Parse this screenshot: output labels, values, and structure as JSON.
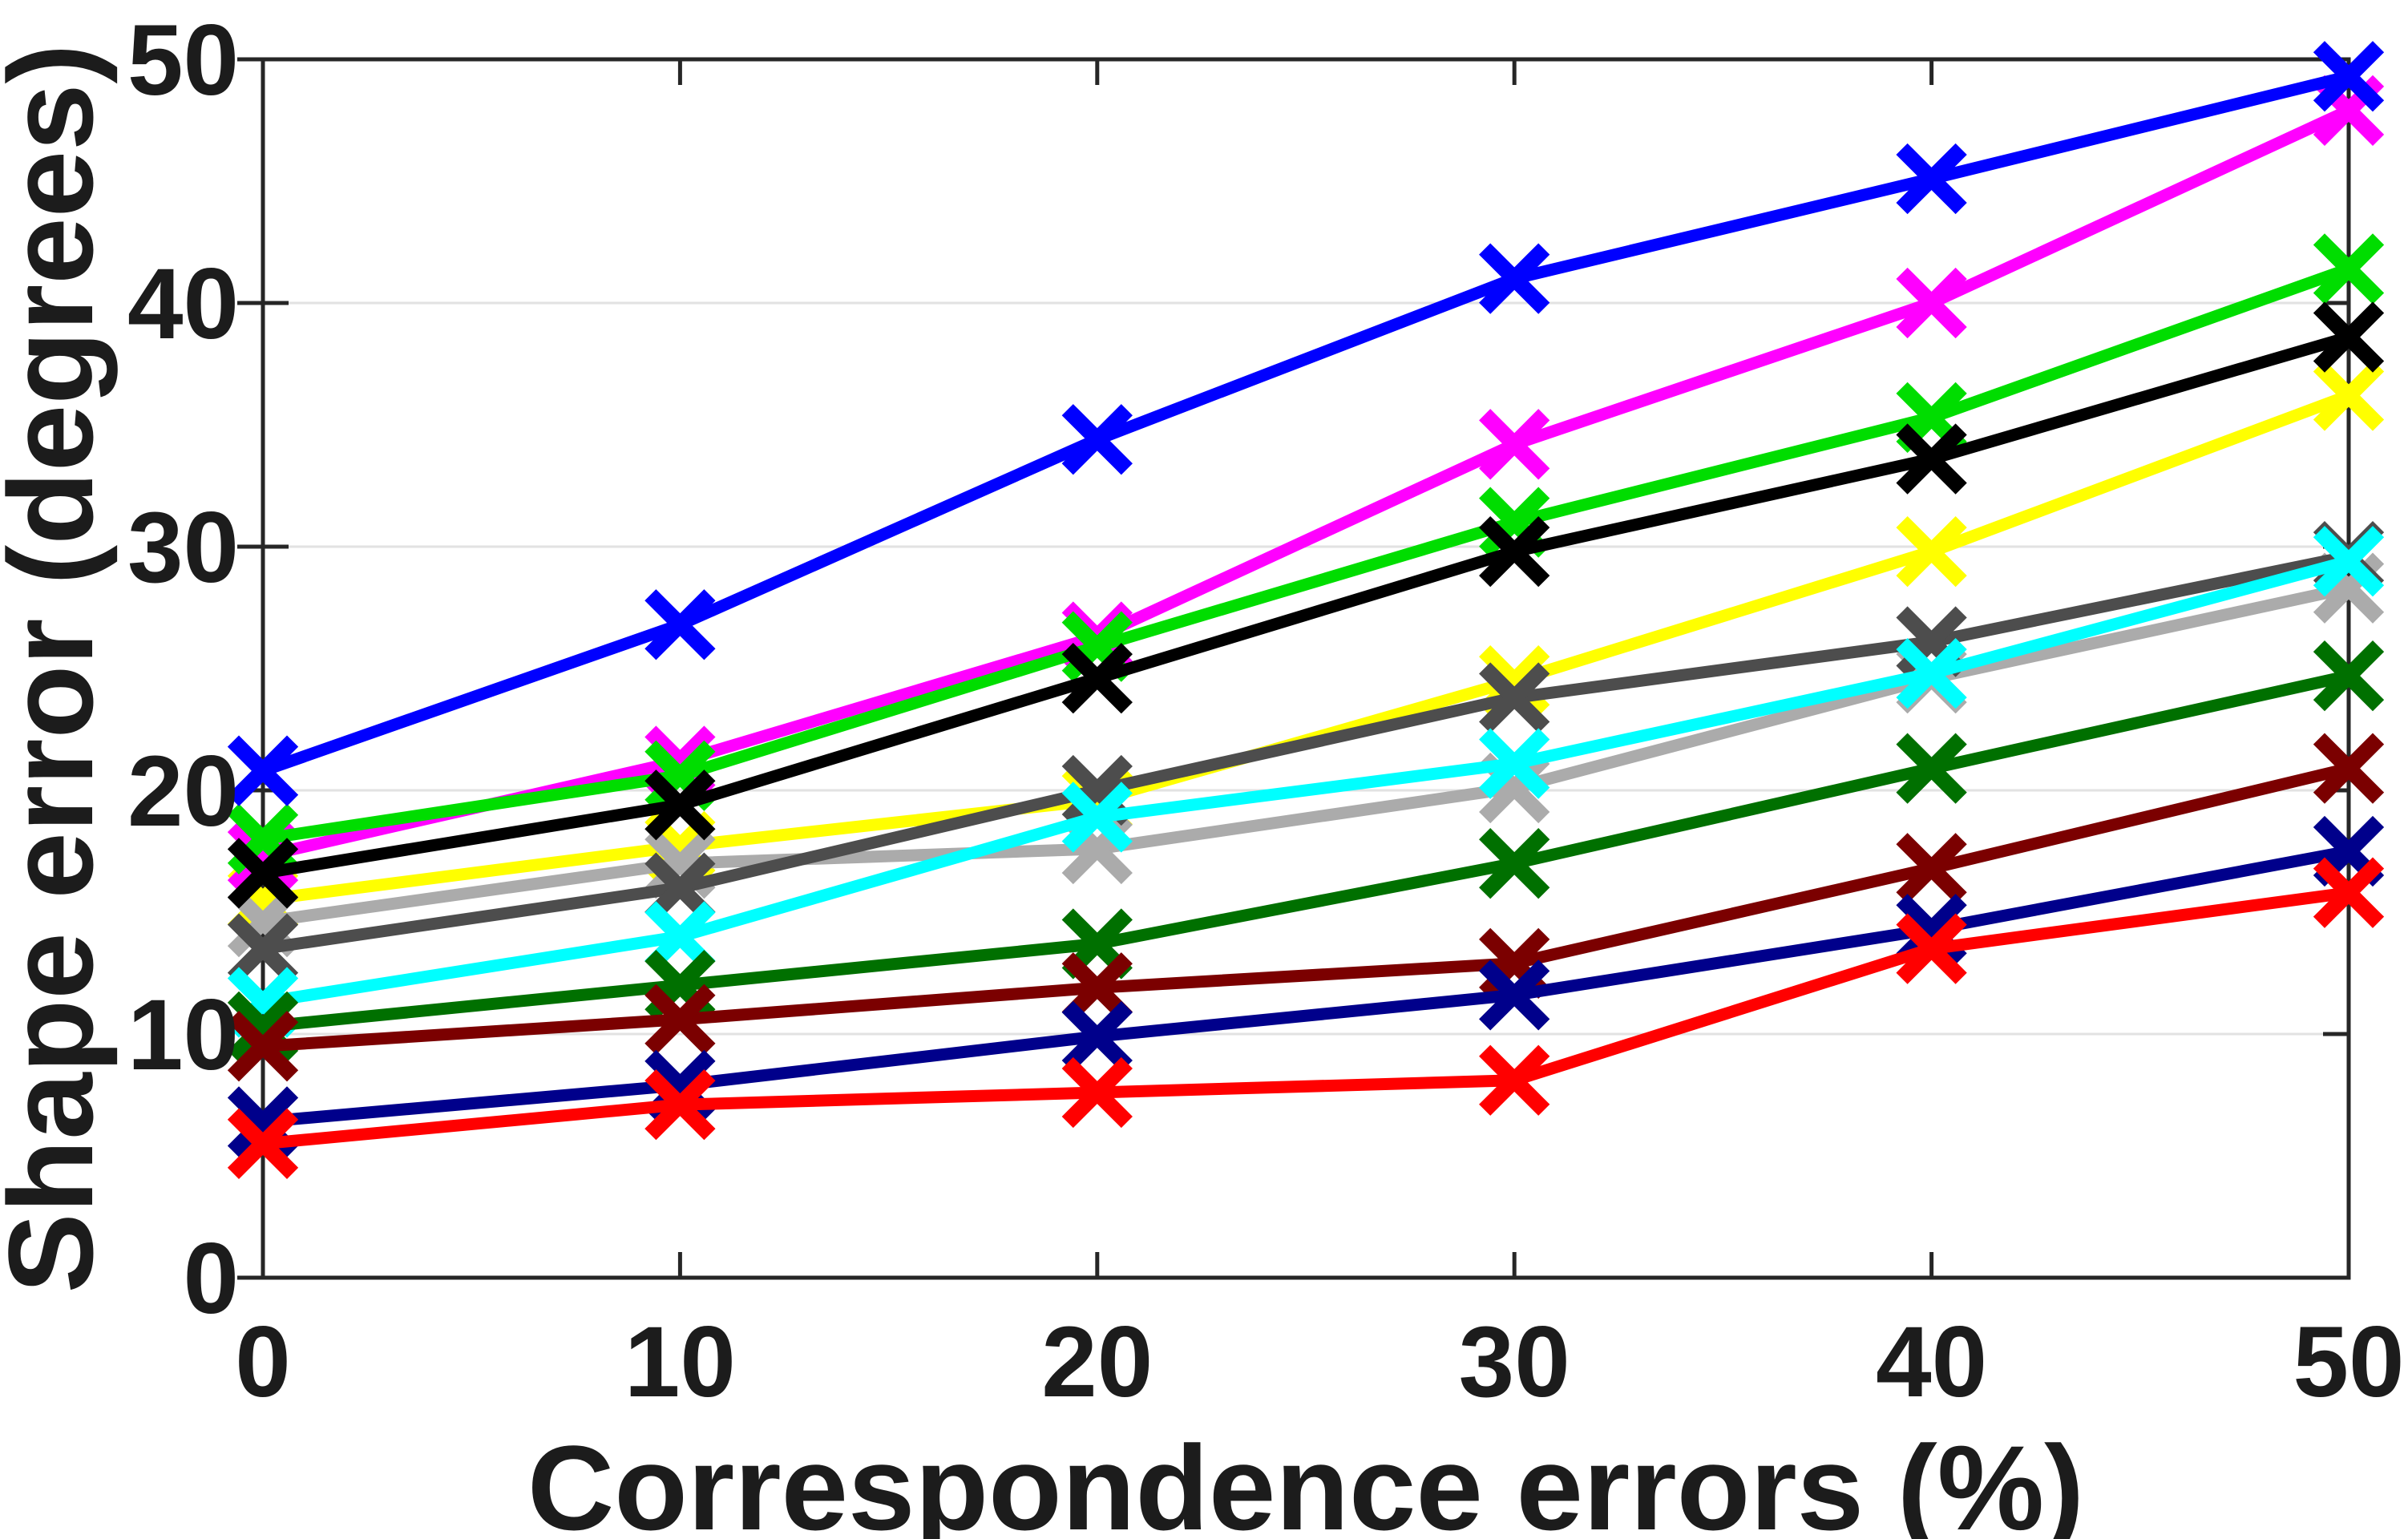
{
  "figure": {
    "title": "",
    "xlabel": "Correspondence errors (%)",
    "ylabel": "Shape error (degrees)"
  },
  "colors": {
    "background": "#ffffff",
    "axis": "#262626",
    "grid": "#e2e2e2",
    "text": "#1c1c1c"
  },
  "chart_data": {
    "type": "line",
    "title": "",
    "xlabel": "Correspondence errors (%)",
    "ylabel": "Shape error (degrees)",
    "x": [
      0,
      10,
      20,
      30,
      40,
      50
    ],
    "xlim": [
      0,
      50
    ],
    "ylim": [
      0,
      50
    ],
    "xticks": [
      0,
      10,
      20,
      30,
      40,
      50
    ],
    "yticks": [
      0,
      10,
      20,
      30,
      40,
      50
    ],
    "grid": "horizontal-only",
    "legend_position": "none",
    "marker": "x",
    "series": [
      {
        "name": "blue",
        "color": "#0000ff",
        "values": [
          20.8,
          26.8,
          34.4,
          41.0,
          45.1,
          49.3
        ]
      },
      {
        "name": "magenta",
        "color": "#ff00ff",
        "values": [
          17.3,
          21.2,
          26.3,
          34.2,
          40.0,
          47.9
        ]
      },
      {
        "name": "green",
        "color": "#00dd00",
        "values": [
          18.0,
          20.6,
          25.9,
          31.0,
          35.3,
          41.4
        ]
      },
      {
        "name": "black",
        "color": "#000000",
        "values": [
          16.6,
          19.4,
          24.6,
          29.8,
          33.6,
          38.6
        ]
      },
      {
        "name": "yellow",
        "color": "#ffff00",
        "values": [
          15.5,
          17.7,
          19.6,
          24.5,
          29.8,
          36.2
        ]
      },
      {
        "name": "dark-gray",
        "color": "#4d4d4d",
        "values": [
          13.5,
          16.0,
          20.0,
          23.8,
          26.1,
          29.6
        ]
      },
      {
        "name": "cyan",
        "color": "#00ffff",
        "values": [
          11.3,
          14.0,
          18.9,
          21.1,
          24.8,
          29.4
        ]
      },
      {
        "name": "light-gray",
        "color": "#ababab",
        "values": [
          14.6,
          17.0,
          17.6,
          20.1,
          24.6,
          28.3
        ]
      },
      {
        "name": "dark-green",
        "color": "#007000",
        "values": [
          10.3,
          12.0,
          13.7,
          17.0,
          20.9,
          24.7
        ]
      },
      {
        "name": "dark-red",
        "color": "#7b0000",
        "values": [
          9.5,
          10.6,
          11.9,
          12.9,
          16.8,
          20.9
        ]
      },
      {
        "name": "navy",
        "color": "#00008b",
        "values": [
          6.4,
          7.9,
          9.9,
          11.6,
          14.3,
          17.5
        ]
      },
      {
        "name": "red",
        "color": "#ff0000",
        "values": [
          5.5,
          7.1,
          7.6,
          8.1,
          13.5,
          15.8
        ]
      }
    ],
    "draw_order": [
      "yellow",
      "light-gray",
      "dark-gray",
      "cyan",
      "dark-green",
      "dark-red",
      "navy",
      "red",
      "magenta",
      "green",
      "black",
      "blue"
    ]
  },
  "layout_note": "single MATLAB-style line plot, no legend, box on, faint horizontal gridlines"
}
